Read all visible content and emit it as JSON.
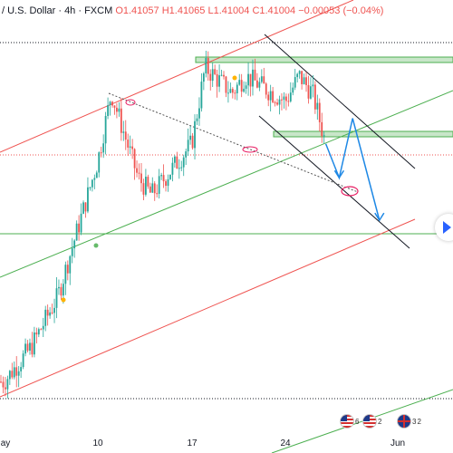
{
  "header": {
    "title": "/ U.S. Dollar · 4h · FXCM",
    "open": "O1.41057",
    "high": "H1.41065",
    "low": "L1.41004",
    "close": "C1.41004",
    "change": "−0.00053 (−0.04%)"
  },
  "xaxis_labels": [
    "ay",
    "10",
    "17",
    "24",
    "Jun"
  ],
  "events": [
    {
      "count": "6",
      "flag": "us"
    },
    {
      "count": "2",
      "flag": "us"
    },
    {
      "count": "3",
      "count2": "2",
      "flag": "uk"
    }
  ],
  "colors": {
    "up": "#26a69a",
    "down": "#ef5350",
    "channel_red": "#ef5350",
    "channel_green": "#4caf50",
    "black_line": "#131722",
    "projection": "#1e88e5",
    "marker": "#e91e63",
    "dot_yellow": "#ffb300",
    "dot_green": "#66bb6a"
  },
  "chart_data": {
    "type": "candlestick",
    "timeframe": "4h",
    "symbol_label": "/ U.S. Dollar",
    "source": "FXCM",
    "trend": [
      {
        "date": "May 3",
        "price": 1.382
      },
      {
        "date": "May 5",
        "price": 1.386
      },
      {
        "date": "May 7",
        "price": 1.392
      },
      {
        "date": "May 10",
        "price": 1.408
      },
      {
        "date": "May 11",
        "price": 1.416
      },
      {
        "date": "May 13",
        "price": 1.406
      },
      {
        "date": "May 14",
        "price": 1.404
      },
      {
        "date": "May 17",
        "price": 1.41
      },
      {
        "date": "May 18",
        "price": 1.419
      },
      {
        "date": "May 20",
        "price": 1.416
      },
      {
        "date": "May 21",
        "price": 1.418
      },
      {
        "date": "May 24",
        "price": 1.415
      },
      {
        "date": "May 25",
        "price": 1.418
      },
      {
        "date": "May 26",
        "price": 1.416
      },
      {
        "date": "May 27",
        "price": 1.41
      }
    ],
    "projection": [
      {
        "date": "May 27",
        "price": 1.41
      },
      {
        "date": "May 28",
        "price": 1.406
      },
      {
        "date": "May 29",
        "price": 1.413
      },
      {
        "date": "May 31",
        "price": 1.401
      }
    ],
    "last": {
      "open": 1.41057,
      "high": 1.41065,
      "low": 1.41004,
      "close": 1.41004,
      "change": -0.00053,
      "change_pct": -0.04
    }
  }
}
